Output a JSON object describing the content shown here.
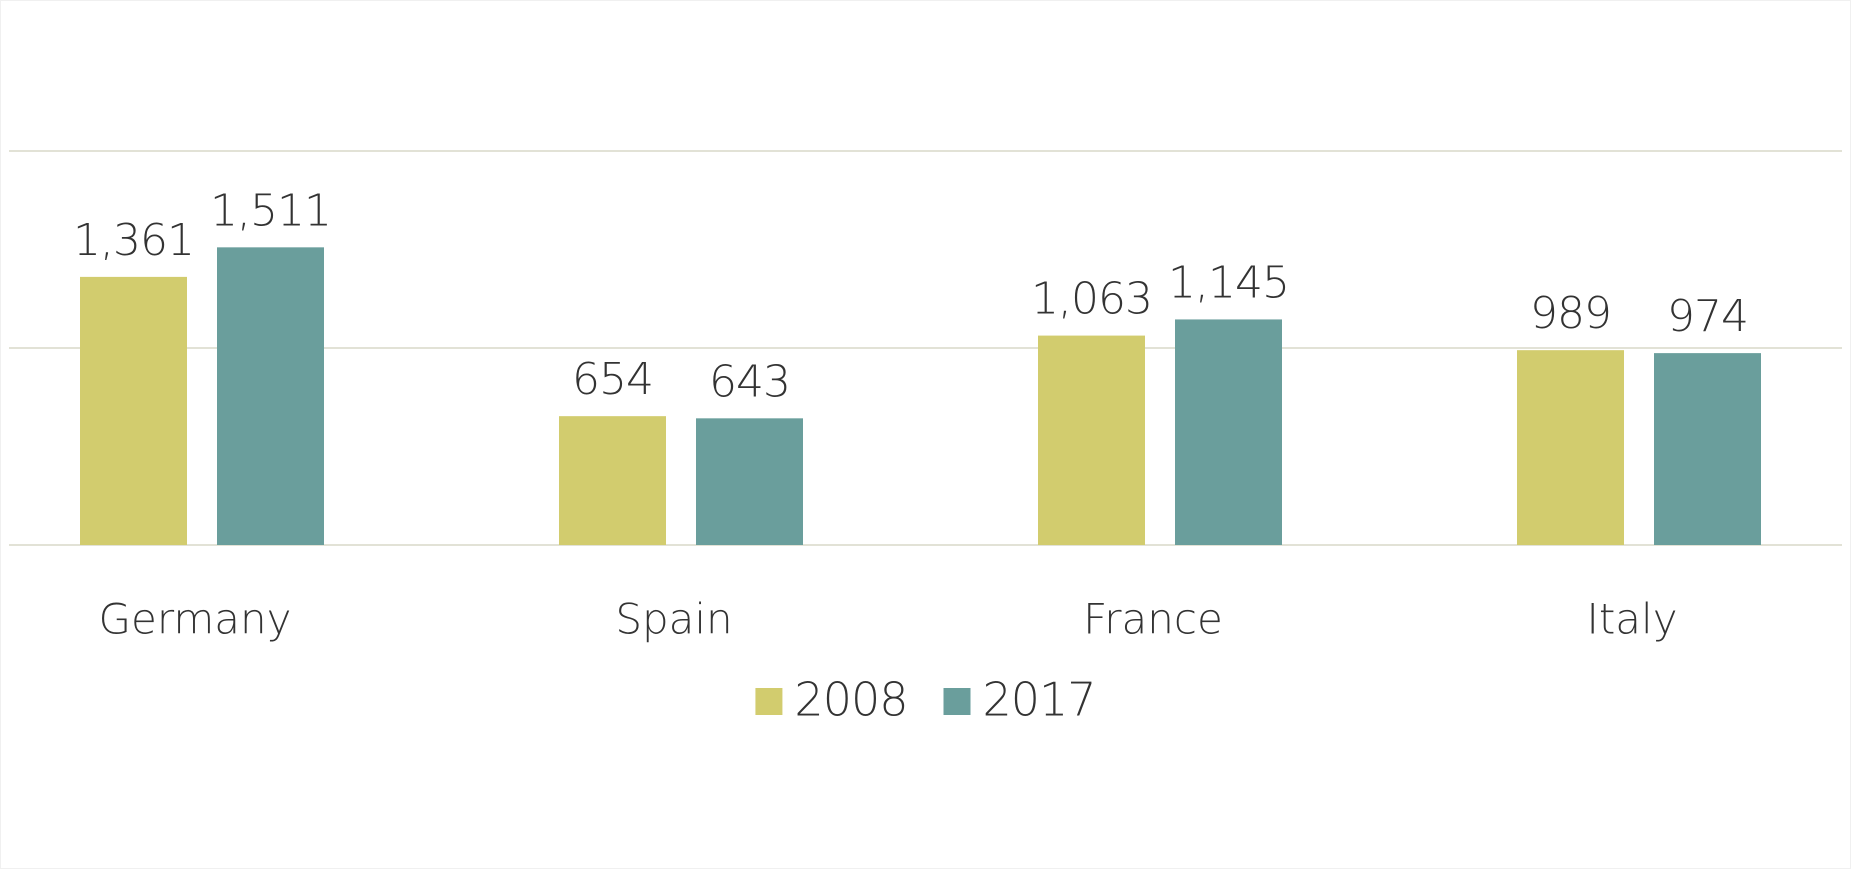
{
  "chart_data": {
    "type": "bar",
    "categories": [
      "Germany",
      "Spain",
      "France",
      "Italy"
    ],
    "series": [
      {
        "name": "2008",
        "color": "#d2cc6e",
        "values": [
          1361,
          654,
          1063,
          989
        ],
        "value_labels": [
          "1,361",
          "654",
          "1,063",
          "989"
        ]
      },
      {
        "name": "2017",
        "color": "#6a9e9c",
        "values": [
          1511,
          643,
          1145,
          974
        ],
        "value_labels": [
          "1,511",
          "643",
          "1,145",
          "974"
        ]
      }
    ],
    "ylim": [
      0,
      2000
    ],
    "yticks": [
      0,
      1000,
      2000
    ],
    "grid": true,
    "legend": "bottom"
  }
}
